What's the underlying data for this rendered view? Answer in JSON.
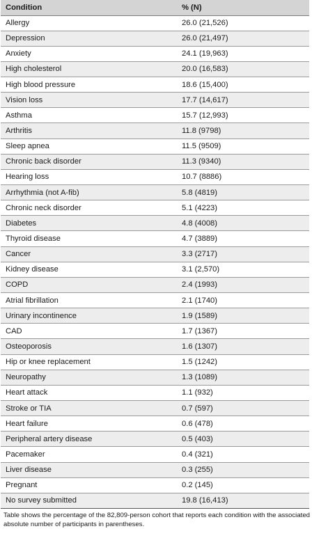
{
  "table": {
    "headers": [
      "Condition",
      "% (N)"
    ],
    "rows": [
      [
        "Allergy",
        "26.0 (21,526)"
      ],
      [
        "Depression",
        "26.0 (21,497)"
      ],
      [
        "Anxiety",
        "24.1 (19,963)"
      ],
      [
        "High cholesterol",
        "20.0 (16,583)"
      ],
      [
        "High blood pressure",
        "18.6 (15,400)"
      ],
      [
        "Vision loss",
        "17.7 (14,617)"
      ],
      [
        "Asthma",
        "15.7 (12,993)"
      ],
      [
        "Arthritis",
        "11.8 (9798)"
      ],
      [
        "Sleep apnea",
        "11.5 (9509)"
      ],
      [
        "Chronic back disorder",
        "11.3 (9340)"
      ],
      [
        "Hearing loss",
        "10.7 (8886)"
      ],
      [
        "Arrhythmia (not A-fib)",
        "5.8 (4819)"
      ],
      [
        "Chronic neck disorder",
        "5.1 (4223)"
      ],
      [
        "Diabetes",
        "4.8 (4008)"
      ],
      [
        "Thyroid disease",
        "4.7 (3889)"
      ],
      [
        "Cancer",
        "3.3 (2717)"
      ],
      [
        "Kidney disease",
        "3.1 (2,570)"
      ],
      [
        "COPD",
        "2.4 (1993)"
      ],
      [
        "Atrial fibrillation",
        "2.1 (1740)"
      ],
      [
        "Urinary incontinence",
        "1.9 (1589)"
      ],
      [
        "CAD",
        "1.7 (1367)"
      ],
      [
        "Osteoporosis",
        "1.6 (1307)"
      ],
      [
        "Hip or knee replacement",
        "1.5 (1242)"
      ],
      [
        "Neuropathy",
        "1.3 (1089)"
      ],
      [
        "Heart attack",
        "1.1 (932)"
      ],
      [
        "Stroke or TIA",
        "0.7 (597)"
      ],
      [
        "Heart failure",
        "0.6 (478)"
      ],
      [
        "Peripheral artery disease",
        "0.5 (403)"
      ],
      [
        "Pacemaker",
        "0.4 (321)"
      ],
      [
        "Liver disease",
        "0.3 (255)"
      ],
      [
        "Pregnant",
        "0.2 (145)"
      ],
      [
        "No survey submitted",
        "19.8 (16,413)"
      ]
    ]
  },
  "footnote": "Table shows the percentage of the 82,809-person cohort that reports each condition with the associated absolute number of participants in parentheses."
}
